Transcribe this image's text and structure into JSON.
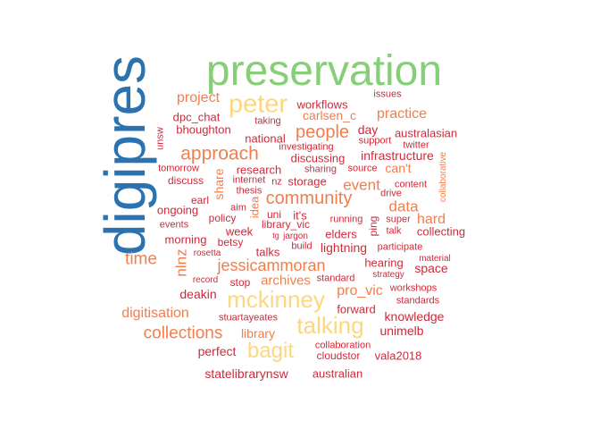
{
  "word_cloud": {
    "colors": {
      "blue": "#2b72b0",
      "green": "#86cf78",
      "yellow": "#fcd77f",
      "orange": "#f47d4c",
      "red": "#cf2a3a"
    },
    "words": [
      "digipres",
      "preservation",
      "peter",
      "mckinney",
      "talking",
      "bagit",
      "approach",
      "community",
      "people",
      "collections",
      "jessicammoran",
      "time",
      "data",
      "event",
      "project",
      "practice",
      "carlsen_c",
      "workflows",
      "issues",
      "dpc_chat",
      "taking",
      "bhoughton",
      "national",
      "australasian",
      "unsw",
      "investigating",
      "support",
      "twitter",
      "day",
      "discussing",
      "infrastructure",
      "tomorrow",
      "research",
      "sharing",
      "source",
      "can't",
      "discuss",
      "internet",
      "nz",
      "storage",
      "content",
      "collaborative",
      "share",
      "thesis",
      "earl",
      "drive",
      "aim",
      "ongoing",
      "policy",
      "idea",
      "uni",
      "it's",
      "library_vic",
      "running",
      "ping",
      "super",
      "hard",
      "events",
      "talk",
      "collecting",
      "week",
      "elders",
      "morning",
      "tg",
      "jargon",
      "betsy",
      "build",
      "lightning",
      "participate",
      "rosetta",
      "talks",
      "nlnz",
      "hearing",
      "material",
      "space",
      "strategy",
      "record",
      "stop",
      "archives",
      "standard",
      "workshops",
      "deakin",
      "pro_vic",
      "standards",
      "forward",
      "digitisation",
      "stuartayeates",
      "knowledge",
      "library",
      "unimelb",
      "perfect",
      "collaboration",
      "cloudstor",
      "vala2018",
      "statelibrarynsw",
      "australian"
    ]
  }
}
